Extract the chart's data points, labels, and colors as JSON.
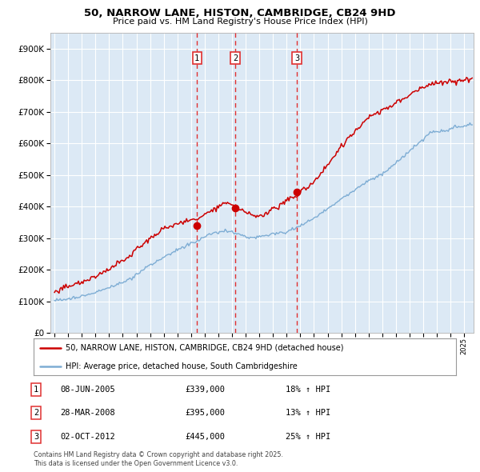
{
  "title1": "50, NARROW LANE, HISTON, CAMBRIDGE, CB24 9HD",
  "title2": "Price paid vs. HM Land Registry's House Price Index (HPI)",
  "legend_line1": "50, NARROW LANE, HISTON, CAMBRIDGE, CB24 9HD (detached house)",
  "legend_line2": "HPI: Average price, detached house, South Cambridgeshire",
  "sale_dates": [
    "08-JUN-2005",
    "28-MAR-2008",
    "02-OCT-2012"
  ],
  "sale_prices": [
    339000,
    395000,
    445000
  ],
  "sale_hpi_pct": [
    "18% ↑ HPI",
    "13% ↑ HPI",
    "25% ↑ HPI"
  ],
  "vline_years": [
    2005.44,
    2008.24,
    2012.75
  ],
  "background_color": "#ffffff",
  "plot_bg_color": "#dce9f5",
  "grid_color": "#ffffff",
  "red_line_color": "#cc0000",
  "blue_line_color": "#7eadd4",
  "vline_color": "#e03030",
  "dot_color": "#cc0000",
  "y_min": 0,
  "y_max": 950000,
  "x_min": 1994.7,
  "x_max": 2025.7,
  "footnote1": "Contains HM Land Registry data © Crown copyright and database right 2025.",
  "footnote2": "This data is licensed under the Open Government Licence v3.0."
}
